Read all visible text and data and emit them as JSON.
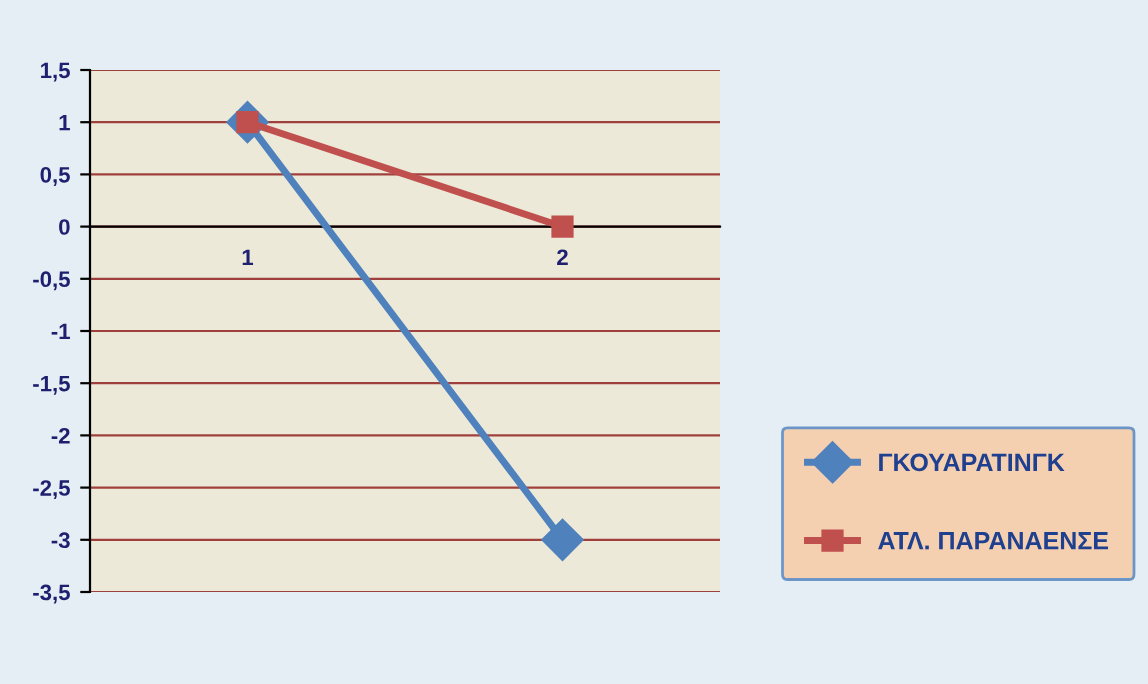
{
  "chart_data": {
    "type": "line",
    "categories": [
      "1",
      "2"
    ],
    "series": [
      {
        "name": "ΓΚΟΥΑΡΑΤΙΝΓΚ",
        "color": "#4f81bd",
        "values": [
          1,
          -3
        ],
        "marker": "diamond"
      },
      {
        "name": "ΑΤΛ. ΠΑΡΑΝΑΕΝΣΕ",
        "color": "#c0504d",
        "values": [
          1,
          0
        ],
        "marker": "square"
      }
    ],
    "ylim": [
      -3.5,
      1.5
    ],
    "yticks": [
      {
        "value": 1.5,
        "label": "1,5"
      },
      1,
      {
        "value": 0.5,
        "label": "0,5"
      },
      0,
      {
        "value": -0.5,
        "label": "-0,5"
      },
      -1,
      {
        "value": -1.5,
        "label": "-1,5"
      },
      -2,
      {
        "value": -2.5,
        "label": "-2,5"
      },
      -3,
      {
        "value": -3.5,
        "label": "-3,5"
      }
    ],
    "grid": "y",
    "legend": "right",
    "line_style": "solid"
  }
}
